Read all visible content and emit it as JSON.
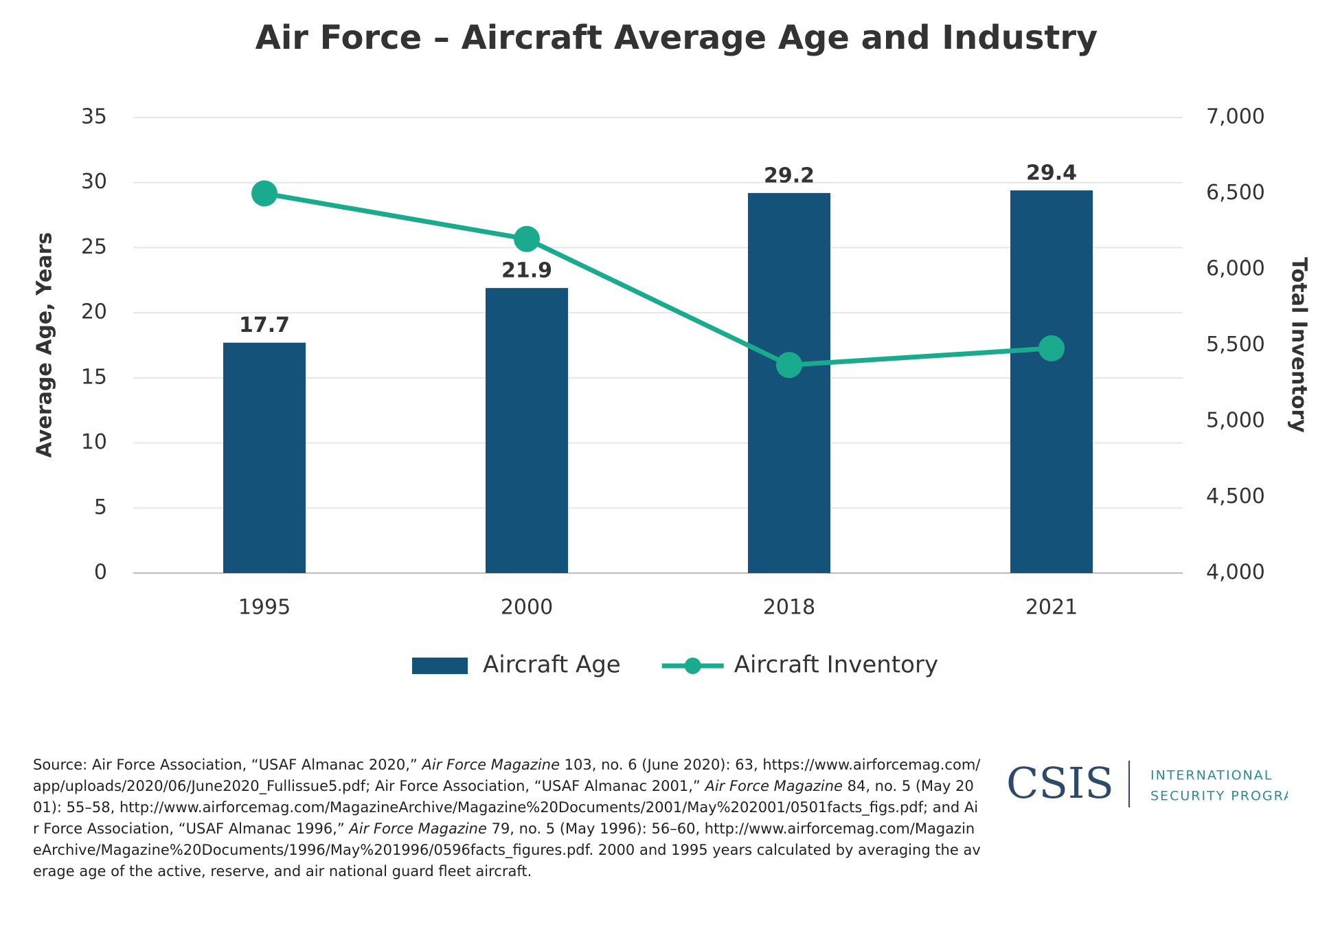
{
  "chart_data": {
    "type": "bar-line",
    "title": "Air Force – Aircraft Average Age and Industry",
    "y_label": "Average Age, Years",
    "y2_label": "Total Inventory",
    "categories": [
      "1995",
      "2000",
      "2018",
      "2021"
    ],
    "series": [
      {
        "name": "Aircraft Age",
        "type": "bar",
        "color": "#15527a",
        "values": [
          17.7,
          21.9,
          29.2,
          29.4
        ]
      },
      {
        "name": "Aircraft Inventory",
        "type": "line",
        "axis": "y2",
        "color": "#1aab8e",
        "values": [
          6500,
          6200,
          5370,
          5480
        ]
      }
    ],
    "ylim": [
      0,
      35
    ],
    "yticks": [
      0,
      5,
      10,
      15,
      20,
      25,
      30,
      35
    ],
    "y2lim": [
      4000,
      7000
    ],
    "y2ticks": [
      {
        "value": 4000,
        "label": "4,000"
      },
      {
        "value": 4500,
        "label": "4,500"
      },
      {
        "value": 5000,
        "label": "5,000"
      },
      {
        "value": 5500,
        "label": "5,500"
      },
      {
        "value": 6000,
        "label": "6,000"
      },
      {
        "value": 6500,
        "label": "6,500"
      },
      {
        "value": 7000,
        "label": "7,000"
      }
    ],
    "grid": true,
    "legend": "bottom"
  },
  "footer": {
    "source": [
      {
        "text": "Source: Air Force Association, “USAF Almanac 2020,” "
      },
      {
        "text": "Air Force Magazine",
        "italic": true
      },
      {
        "text": " 103, no. 6 (June 2020): 63, https://www.airforcemag.com/app/uploads/2020/06/June2020_Fullissue5.pdf; Air Force Association, “USAF Almanac 2001,” "
      },
      {
        "text": "Air Force Magazine",
        "italic": true
      },
      {
        "text": " 84, no. 5 (May 2001): 55–58, http://www.airforcemag.com/MagazineArchive/Magazine%20Documents/2001/May%202001/0501facts_figs.pdf; and Air Force Association, “USAF Almanac 1996,” "
      },
      {
        "text": "Air Force Magazine",
        "italic": true
      },
      {
        "text": " 79, no. 5 (May 1996): 56–60, http://www.airforcemag.com/MagazineArchive/Magazine%20Documents/1996/May%201996/0596facts_figures.pdf. 2000 and 1995 years calculated by averaging the average age of the active, reserve, and air national guard fleet aircraft."
      }
    ]
  },
  "logo": {
    "name": "CSIS",
    "line1": "INTERNATIONAL",
    "line2": "SECURITY PROGRAM"
  }
}
